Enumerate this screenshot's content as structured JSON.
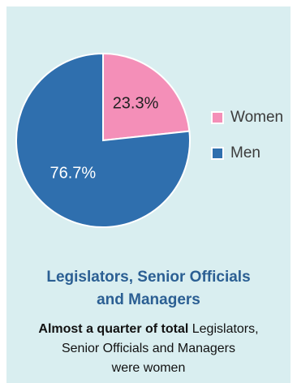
{
  "chart_data": {
    "type": "pie",
    "slices": [
      {
        "label": "Women",
        "value": 23.3,
        "display": "23.3%",
        "color": "#f48fb8"
      },
      {
        "label": "Men",
        "value": 76.7,
        "display": "76.7%",
        "color": "#2f6fae"
      }
    ],
    "title_line1": "Legislators, Senior Officials",
    "title_line2": "and Managers",
    "legend_placement": "right"
  },
  "caption": {
    "bold": "Almost a quarter of total",
    "rest_line1": " Legislators,",
    "line2": "Senior Officials and Managers",
    "line3": "were women"
  }
}
